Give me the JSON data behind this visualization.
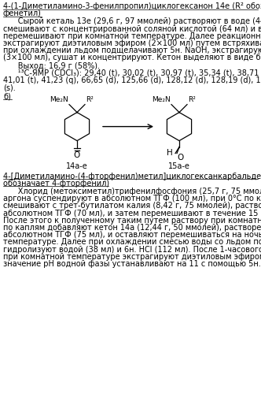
{
  "title1_l1": "4-(1-Диметиламино-3-фенилпропил)циклогексанон 14e (R² обозначает",
  "title1_l2": "фенетил)",
  "para1_lines": [
    "      Сырой кеталь 13e (29,6 г, 97 ммолей) растворяют в воде (44 мл),",
    "смешивают с концентрированной соляной кислотой (64 мл) и в течение 20 ч",
    "перемешивают при комнатной температуре. Далее реакционную смесь",
    "экстрагируют диэтиловым эфиром (2×100 мл) путем встряхивания, водную фазу",
    "при охлаждении льдом подщелачивают 5н. NaOH, экстрагируют дихлорметаном",
    "(3×100 мл), сушат и концентрируют. Кетон выделяют в виде бесцветного масла."
  ],
  "yield_line": "      Выход: 16,9 г (58%).",
  "nmr_lines": [
    "      ¹³С-ЯМР (CDCl₃): 29,40 (t), 30,02 (t), 30,97 (t), 35,34 (t), 38,71 (t), 40,79 (t),",
    "41,01 (t), 41,23 (q), 66,65 (d), 125,66 (d), 128,12 (d), 128,19 (d), 142,27 (s), 211,70",
    "(s)."
  ],
  "section_b": "б)",
  "label_left": "14a-e",
  "label_right": "15a-e",
  "title2_l1": "4-[Диметиламино-(4-фторфенил)метил]циклогексанкарбальдегид 15a (R²",
  "title2_l2": "обозначает 4-фторфенил)",
  "para2_lines": [
    "      Хлорид (метоксиметил)трифенилфосфония (25,7 г, 75 ммолей) в атмосфере",
    "аргона суспендируют в абсолютном ТГФ (100 мл), при 0°С по каплям",
    "смешивают с трет-бутилатом калия (8,42 г, 75 ммолей), растворенным в",
    "абсолютном ТГФ (70 мл), и затем перемешивают в течение 15 мин при 0°С.",
    "После этого к полученному таким путем раствору при комнатной температуре",
    "по каплям добавляют кетон 14a (12,44 г, 50 ммолей), растворенный в",
    "абсолютном ТГФ (75 мл), и оставляют перемешиваться на ночь при комнатной",
    "температуре. Далее при охлаждении смесью воды со льдом по каплям",
    "гидролизуют водой (38 мл) и 6н. HCl (112 мл). После 1-часового перемешивания",
    "при комнатной температуре экстрагируют диэтиловым эфиром (10×50 мл),",
    "значение pH водной фазы устанавливают на 11 с помощью 5н. NaOH,"
  ],
  "bg_color": "#ffffff",
  "text_color": "#000000",
  "fs": 7.0,
  "lh": 9.2
}
